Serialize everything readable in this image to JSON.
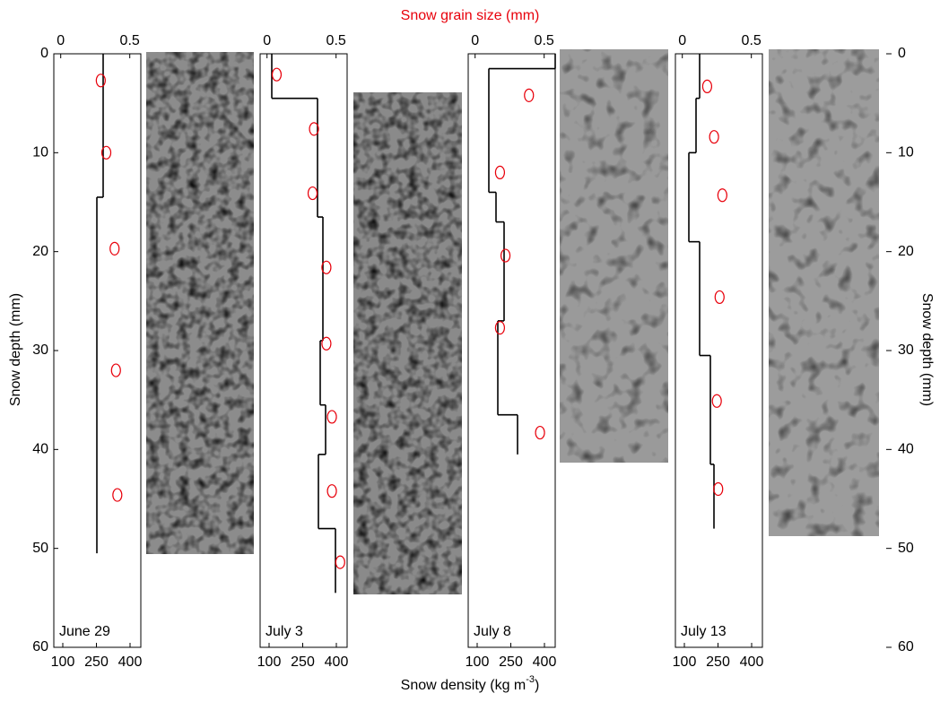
{
  "figure": {
    "top_label": "Snow grain size (mm)",
    "bottom_label": {
      "text": "Snow density (kg m",
      "sup": "-3",
      "end": ")"
    },
    "left_label": "Snow depth (mm)",
    "right_label": "Snow depth (mm)",
    "right_ylim": [
      0,
      60
    ],
    "right_yticks": [
      0,
      10,
      20,
      30,
      40,
      50,
      60
    ],
    "grain_color": "#e8000b",
    "line_color": "#000000"
  },
  "chart_data": [
    {
      "type": "profile",
      "title": "June 29",
      "ylim": [
        0,
        60
      ],
      "yticks": [
        0,
        10,
        20,
        30,
        40,
        50,
        60
      ],
      "xlim": [
        60,
        448
      ],
      "xticks": [
        100,
        250,
        400
      ],
      "x2lim": [
        -0.05,
        0.58
      ],
      "x2ticks": [
        0,
        0.5
      ],
      "density": {
        "depth_edges": [
          0,
          14.5,
          50.5
        ],
        "values": [
          280,
          252
        ]
      },
      "grain_size": {
        "depth": [
          2.7,
          10.0,
          19.7,
          32.0,
          44.6
        ],
        "values": [
          0.29,
          0.33,
          0.39,
          0.4,
          0.41
        ]
      }
    },
    {
      "type": "profile",
      "title": "July 3",
      "ylim": [
        0,
        60
      ],
      "xlim": [
        60,
        448
      ],
      "xticks": [
        100,
        250,
        400
      ],
      "x2lim": [
        -0.05,
        0.58
      ],
      "x2ticks": [
        0,
        0.5
      ],
      "density": {
        "depth_edges": [
          0,
          4.5,
          16.5,
          29,
          35.5,
          40.5,
          48,
          54.5
        ],
        "values": [
          112,
          316,
          340,
          328,
          352,
          320,
          396
        ]
      },
      "grain_size": {
        "depth": [
          2.1,
          7.6,
          14.1,
          21.6,
          29.3,
          36.7,
          44.2,
          51.4
        ],
        "values": [
          0.07,
          0.34,
          0.33,
          0.43,
          0.43,
          0.47,
          0.47,
          0.53
        ]
      }
    },
    {
      "type": "profile",
      "title": "July 8",
      "ylim": [
        0,
        60
      ],
      "xlim": [
        60,
        448
      ],
      "xticks": [
        100,
        250,
        400
      ],
      "x2lim": [
        -0.05,
        0.58
      ],
      "x2ticks": [
        0,
        0.5
      ],
      "density": {
        "depth_edges": [
          0,
          1.5,
          14,
          17,
          27,
          36.5,
          40.5
        ],
        "values": [
          448,
          152,
          184,
          220,
          192,
          280
        ]
      },
      "grain_size": {
        "depth": [
          4.2,
          12.0,
          20.4,
          27.7,
          38.3
        ],
        "values": [
          0.39,
          0.18,
          0.22,
          0.18,
          0.47
        ]
      }
    },
    {
      "type": "profile",
      "title": "July 13",
      "ylim": [
        0,
        60
      ],
      "xlim": [
        60,
        448
      ],
      "xticks": [
        100,
        250,
        400
      ],
      "x2lim": [
        -0.05,
        0.58
      ],
      "x2ticks": [
        0,
        0.5
      ],
      "density": {
        "depth_edges": [
          0,
          4.5,
          10,
          19,
          30.5,
          41.5,
          48
        ],
        "values": [
          168,
          152,
          120,
          168,
          216,
          232
        ]
      },
      "grain_size": {
        "depth": [
          3.3,
          8.4,
          14.3,
          24.6,
          35.1,
          44.0
        ],
        "values": [
          0.18,
          0.23,
          0.29,
          0.27,
          0.25,
          0.26
        ]
      }
    }
  ]
}
